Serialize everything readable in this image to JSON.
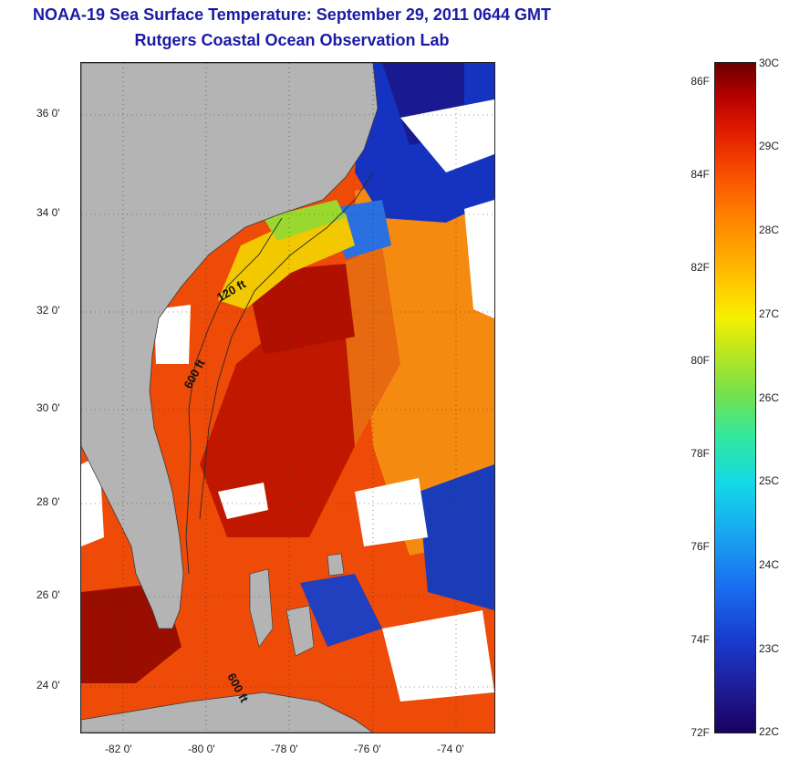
{
  "title": {
    "line1": "NOAA-19 Sea Surface Temperature:  September 29, 2011 0644 GMT",
    "line2": "Rutgers Coastal Ocean Observation Lab"
  },
  "map": {
    "y_axis_labels": [
      "36 0'",
      "34 0'",
      "32 0'",
      "30 0'",
      "28 0'",
      "26 0'",
      "24 0'"
    ],
    "x_axis_labels": [
      "-82 0'",
      "-80 0'",
      "-78 0'",
      "-76 0'",
      "-74 0'"
    ],
    "contour_labels": [
      "120 ft",
      "600 ft",
      "600 ft"
    ],
    "colors": {
      "land": "#b4b4b4",
      "ocean_warm": "#e83a00",
      "ocean_hot": "#a80000",
      "ocean_cool": "#1428c8",
      "cloud": "#ffffff"
    }
  },
  "colorbar": {
    "fahrenheit": [
      "86F",
      "84F",
      "82F",
      "80F",
      "78F",
      "76F",
      "74F",
      "72F"
    ],
    "celsius": [
      "30C",
      "29C",
      "28C",
      "27C",
      "26C",
      "25C",
      "24C",
      "23C",
      "22C"
    ]
  }
}
